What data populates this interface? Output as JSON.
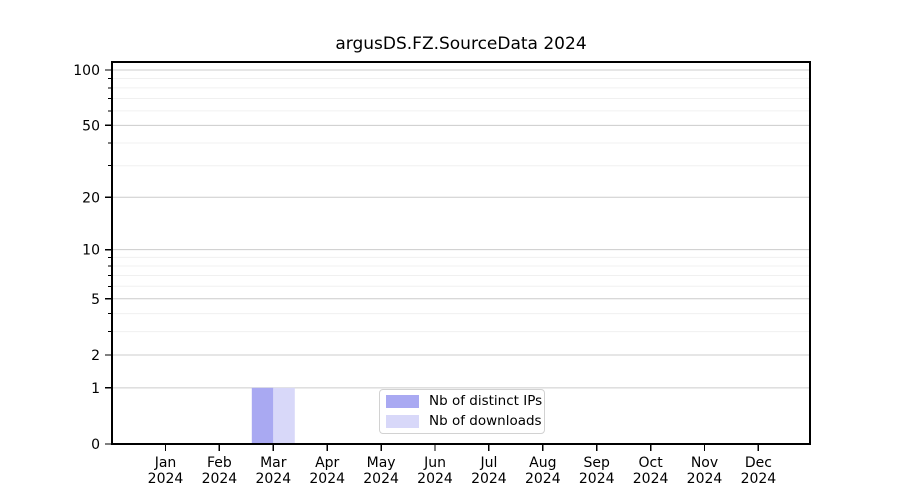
{
  "chart_data": {
    "type": "bar",
    "title": "argusDS.FZ.SourceData 2024",
    "categories": [
      "Jan",
      "Feb",
      "Mar",
      "Apr",
      "May",
      "Jun",
      "Jul",
      "Aug",
      "Sep",
      "Oct",
      "Nov",
      "Dec"
    ],
    "x_tick_second_line": "2024",
    "series": [
      {
        "name": "Nb of distinct IPs",
        "color": "#a9a9f2",
        "values": [
          0,
          0,
          1,
          0,
          0,
          0,
          0,
          0,
          0,
          0,
          0,
          0
        ]
      },
      {
        "name": "Nb of downloads",
        "color": "#d8d8f9",
        "values": [
          0,
          0,
          1,
          0,
          0,
          0,
          0,
          0,
          0,
          0,
          0,
          0
        ]
      }
    ],
    "yscale": "log1p",
    "ylim": [
      0,
      111
    ],
    "y_major_ticks": [
      0,
      1,
      2,
      5,
      10,
      20,
      50,
      100
    ],
    "y_minor_gridlines": [
      3,
      4,
      6,
      7,
      8,
      9,
      30,
      40,
      60,
      70,
      80,
      90
    ],
    "grid": true,
    "legend_position": "lower-center-inside",
    "colors": {
      "major_grid": "#cccccc",
      "minor_grid": "#f0f0f0",
      "spine": "#000000",
      "text": "#000000",
      "background": "#ffffff"
    }
  }
}
